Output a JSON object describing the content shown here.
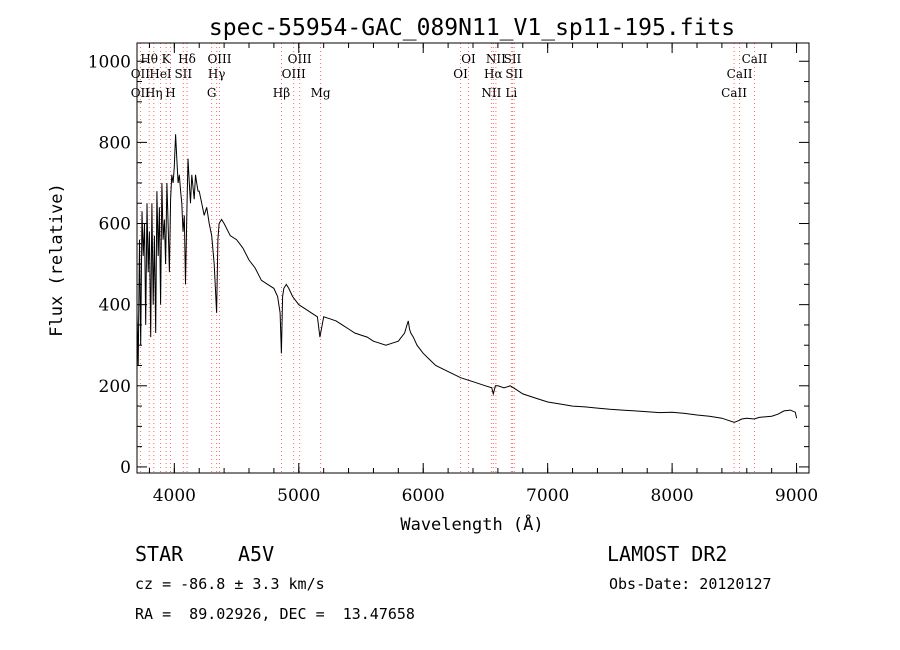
{
  "chart_data": {
    "type": "line",
    "title": "spec-55954-GAC_089N11_V1_sp11-195.fits",
    "xlabel": "Wavelength (Å)",
    "ylabel": "Flux (relative)",
    "xlim": [
      3700,
      9100
    ],
    "ylim": [
      -15,
      1045
    ],
    "xticks": [
      4000,
      5000,
      6000,
      7000,
      8000,
      9000
    ],
    "yticks": [
      0,
      200,
      400,
      600,
      800,
      1000
    ],
    "grid": false,
    "line_color": "#000000",
    "marker_color": "#ff6a6a",
    "series": [
      {
        "x": [
          3700,
          3710,
          3720,
          3730,
          3740,
          3750,
          3760,
          3770,
          3780,
          3790,
          3800,
          3810,
          3820,
          3830,
          3840,
          3850,
          3860,
          3870,
          3880,
          3890,
          3900,
          3910,
          3920,
          3930,
          3940,
          3950,
          3960,
          3970,
          3980,
          3990,
          4000,
          4010,
          4020,
          4030,
          4040,
          4050,
          4060,
          4070,
          4080,
          4090,
          4100,
          4110,
          4120,
          4130,
          4140,
          4150,
          4160,
          4170,
          4180,
          4190,
          4200,
          4220,
          4240,
          4260,
          4280,
          4300,
          4320,
          4330,
          4340,
          4350,
          4360,
          4380,
          4400,
          4450,
          4500,
          4550,
          4600,
          4650,
          4700,
          4750,
          4800,
          4830,
          4850,
          4860,
          4870,
          4880,
          4900,
          4920,
          4950,
          5000,
          5050,
          5100,
          5150,
          5170,
          5200,
          5250,
          5300,
          5350,
          5400,
          5450,
          5500,
          5550,
          5600,
          5650,
          5700,
          5750,
          5800,
          5850,
          5870,
          5880,
          5890,
          5900,
          5920,
          5950,
          6000,
          6050,
          6100,
          6200,
          6300,
          6400,
          6500,
          6550,
          6563,
          6580,
          6600,
          6650,
          6700,
          6750,
          6800,
          6900,
          7000,
          7100,
          7200,
          7300,
          7400,
          7500,
          7600,
          7700,
          7800,
          7900,
          8000,
          8100,
          8200,
          8300,
          8400,
          8450,
          8500,
          8540,
          8560,
          8600,
          8660,
          8700,
          8800,
          8850,
          8900,
          8950,
          8990,
          9000
        ],
        "y": [
          380,
          250,
          560,
          300,
          630,
          520,
          600,
          350,
          650,
          480,
          580,
          320,
          650,
          400,
          570,
          330,
          680,
          520,
          640,
          400,
          700,
          560,
          610,
          500,
          700,
          600,
          480,
          660,
          720,
          700,
          740,
          820,
          760,
          700,
          720,
          680,
          650,
          580,
          620,
          450,
          620,
          760,
          700,
          650,
          720,
          690,
          660,
          720,
          700,
          680,
          680,
          650,
          620,
          640,
          600,
          570,
          500,
          440,
          380,
          560,
          600,
          610,
          600,
          570,
          560,
          540,
          510,
          490,
          460,
          450,
          440,
          420,
          380,
          280,
          420,
          440,
          450,
          440,
          420,
          400,
          390,
          380,
          370,
          320,
          370,
          365,
          360,
          350,
          340,
          330,
          325,
          320,
          310,
          305,
          300,
          305,
          310,
          330,
          350,
          360,
          340,
          330,
          320,
          300,
          280,
          265,
          250,
          235,
          220,
          210,
          200,
          195,
          180,
          200,
          200,
          195,
          200,
          190,
          180,
          170,
          160,
          155,
          150,
          148,
          145,
          142,
          140,
          138,
          136,
          134,
          135,
          132,
          128,
          125,
          120,
          115,
          110,
          115,
          118,
          120,
          118,
          122,
          125,
          130,
          138,
          140,
          135,
          120
        ]
      }
    ],
    "annotations": [
      {
        "label": "Hθ",
        "x": 3798,
        "row": 1
      },
      {
        "label": "OII",
        "x": 3727,
        "row": 2
      },
      {
        "label": "OII",
        "x": 3727,
        "row": 3
      },
      {
        "label": "K",
        "x": 3934,
        "row": 1
      },
      {
        "label": "HeI",
        "x": 3889,
        "row": 2
      },
      {
        "label": "Hη",
        "x": 3835,
        "row": 3
      },
      {
        "label": "Hδ",
        "x": 4102,
        "row": 1
      },
      {
        "label": "SII",
        "x": 4072,
        "row": 2
      },
      {
        "label": "H",
        "x": 3969,
        "row": 3
      },
      {
        "label": "OIII",
        "x": 4363,
        "row": 1
      },
      {
        "label": "Hγ",
        "x": 4340,
        "row": 2
      },
      {
        "label": "G",
        "x": 4300,
        "row": 3
      },
      {
        "label": "OIII",
        "x": 5007,
        "row": 1
      },
      {
        "label": "OIII",
        "x": 4959,
        "row": 2
      },
      {
        "label": "Hβ",
        "x": 4861,
        "row": 3
      },
      {
        "label": "Mg",
        "x": 5175,
        "row": 3
      },
      {
        "label": "OI",
        "x": 6364,
        "row": 1
      },
      {
        "label": "OI",
        "x": 6300,
        "row": 2
      },
      {
        "label": "NII",
        "x": 6584,
        "row": 1
      },
      {
        "label": "Hα",
        "x": 6563,
        "row": 2
      },
      {
        "label": "NII",
        "x": 6548,
        "row": 3
      },
      {
        "label": "SII",
        "x": 6717,
        "row": 1
      },
      {
        "label": "SII",
        "x": 6731,
        "row": 2
      },
      {
        "label": "Li",
        "x": 6708,
        "row": 3
      },
      {
        "label": "CaII",
        "x": 8662,
        "row": 1
      },
      {
        "label": "CaII",
        "x": 8542,
        "row": 2
      },
      {
        "label": "CaII",
        "x": 8498,
        "row": 3
      }
    ],
    "marker_lines": [
      3727,
      3798,
      3835,
      3889,
      3934,
      3969,
      4072,
      4102,
      4300,
      4340,
      4363,
      4861,
      4959,
      5007,
      5175,
      6300,
      6364,
      6548,
      6563,
      6584,
      6708,
      6717,
      6731,
      8498,
      8542,
      8662
    ]
  },
  "info": {
    "object_class": "STAR",
    "subclass": "A5V",
    "survey": "LAMOST DR2",
    "cz": "cz = -86.8 ± 3.3 km/s",
    "obs_date": "Obs-Date: 20120127",
    "coords": "RA =  89.02926, DEC =  13.47658"
  }
}
